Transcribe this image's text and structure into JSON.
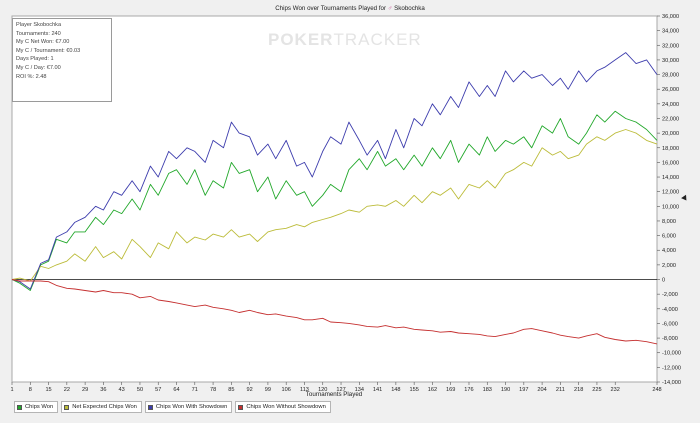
{
  "chart_data": {
    "type": "line",
    "title": "Chips Won over Tournaments Played for",
    "player_name": "Skobochka",
    "xlabel": "Tournaments Played",
    "ylabel": "",
    "xlim": [
      1,
      248
    ],
    "ylim": [
      -14000,
      36000
    ],
    "x_ticks": [
      "1",
      "8",
      "15",
      "22",
      "29",
      "36",
      "43",
      "50",
      "57",
      "64",
      "71",
      "78",
      "85",
      "92",
      "99",
      "106",
      "113",
      "120",
      "127",
      "134",
      "141",
      "148",
      "155",
      "162",
      "169",
      "176",
      "183",
      "190",
      "197",
      "204",
      "211",
      "218",
      "225",
      "232",
      "248"
    ],
    "y_ticks": [
      "36,000",
      "34,000",
      "32,000",
      "30,000",
      "28,000",
      "26,000",
      "24,000",
      "22,000",
      "20,000",
      "18,000",
      "16,000",
      "14,000",
      "12,000",
      "10,000",
      "8,000",
      "6,000",
      "4,000",
      "2,000",
      "0",
      "-2,000",
      "-4,000",
      "-6,000",
      "-8,000",
      "-10,000",
      "-12,000",
      "-14,000"
    ],
    "x": [
      1,
      4,
      8,
      12,
      15,
      18,
      22,
      25,
      29,
      33,
      36,
      40,
      43,
      47,
      50,
      54,
      57,
      61,
      64,
      68,
      71,
      75,
      78,
      82,
      85,
      88,
      92,
      95,
      99,
      102,
      106,
      110,
      113,
      116,
      120,
      123,
      127,
      130,
      134,
      137,
      141,
      144,
      148,
      151,
      155,
      158,
      162,
      165,
      169,
      172,
      176,
      180,
      183,
      186,
      190,
      193,
      197,
      200,
      204,
      208,
      211,
      214,
      218,
      221,
      225,
      228,
      232,
      236,
      240,
      244,
      248
    ],
    "series": [
      {
        "name": "Chips Won",
        "color": "#22a82b",
        "values": [
          0,
          -500,
          -1500,
          2000,
          2500,
          5500,
          5000,
          6500,
          6500,
          8500,
          7500,
          9500,
          9000,
          11000,
          9500,
          13000,
          11500,
          14500,
          15000,
          13000,
          15000,
          11500,
          13500,
          12500,
          16000,
          14500,
          15000,
          12000,
          14000,
          11000,
          13500,
          11500,
          12000,
          10000,
          11500,
          13000,
          12000,
          15000,
          16500,
          15000,
          17500,
          15500,
          16500,
          15000,
          17000,
          15500,
          18000,
          16500,
          19000,
          16000,
          18500,
          17000,
          19500,
          17500,
          19000,
          18500,
          19500,
          18000,
          21000,
          20000,
          22000,
          19500,
          18500,
          20000,
          22500,
          21500,
          23000,
          22000,
          21500,
          20500,
          19000
        ]
      },
      {
        "name": "Net Expected Chips Won",
        "color": "#bcbc3a",
        "values": [
          0,
          200,
          -200,
          1800,
          1500,
          2000,
          2500,
          3500,
          2500,
          4500,
          3000,
          3800,
          2800,
          5500,
          4500,
          3000,
          5000,
          4200,
          6500,
          5000,
          5800,
          5400,
          6200,
          5800,
          6800,
          5800,
          6200,
          5200,
          6500,
          6800,
          7000,
          7500,
          7200,
          7800,
          8200,
          8500,
          9000,
          9500,
          9200,
          10000,
          10200,
          10000,
          10800,
          10000,
          11500,
          10500,
          12000,
          11500,
          12500,
          11000,
          13000,
          12500,
          13500,
          12500,
          14500,
          15000,
          16000,
          15500,
          18000,
          17000,
          17500,
          16500,
          17000,
          18500,
          19500,
          19000,
          20000,
          20500,
          20000,
          19000,
          18500
        ]
      },
      {
        "name": "Chips Won With Showdown",
        "color": "#3d3dad",
        "values": [
          0,
          -300,
          -1300,
          2200,
          2700,
          5800,
          6500,
          7800,
          8500,
          10000,
          9500,
          12000,
          11500,
          13500,
          12000,
          15500,
          14000,
          17500,
          16500,
          18000,
          17500,
          16000,
          19000,
          18000,
          21500,
          20000,
          19500,
          17000,
          18500,
          16500,
          19000,
          15500,
          16000,
          14000,
          17500,
          19500,
          18500,
          21500,
          19000,
          17000,
          19000,
          16500,
          20500,
          18000,
          22000,
          21000,
          24000,
          22500,
          25000,
          23500,
          27000,
          25000,
          26500,
          25000,
          28500,
          27000,
          28500,
          27500,
          28000,
          26500,
          27500,
          26000,
          28500,
          27000,
          28500,
          29000,
          30000,
          31000,
          29500,
          30000,
          28000
        ]
      },
      {
        "name": "Chips Won Without Showdown",
        "color": "#c53030",
        "values": [
          0,
          -200,
          -200,
          -200,
          -300,
          -800,
          -1200,
          -1300,
          -1500,
          -1700,
          -1500,
          -1800,
          -1800,
          -2000,
          -2500,
          -2300,
          -2800,
          -3000,
          -3200,
          -3500,
          -3700,
          -3500,
          -3800,
          -4000,
          -4200,
          -4500,
          -4200,
          -4500,
          -4800,
          -4700,
          -5000,
          -5200,
          -5500,
          -5500,
          -5300,
          -5800,
          -5900,
          -6000,
          -6200,
          -6400,
          -6500,
          -6300,
          -6600,
          -6500,
          -6800,
          -6900,
          -7000,
          -7200,
          -7100,
          -7300,
          -7400,
          -7500,
          -7700,
          -7800,
          -7500,
          -7300,
          -6800,
          -6700,
          -7000,
          -7300,
          -7600,
          -7800,
          -8000,
          -7700,
          -7400,
          -7900,
          -8200,
          -8400,
          -8300,
          -8500,
          -8800
        ]
      }
    ]
  },
  "stats_box": {
    "player": "Player Skobochka",
    "tournaments": "Tournaments: 240",
    "net_won": "My C Net Won: €7.00",
    "per_tournament": "My C / Tournament: €0.03",
    "days_played": "Days Played: 1",
    "per_day": "My C / Day: €7.00",
    "roi": "ROI %: 2.48"
  },
  "watermark": {
    "bold": "POKER",
    "thin": "TRACKER"
  },
  "legend": [
    {
      "label": "Chips Won",
      "color": "#22a82b"
    },
    {
      "label": "Net Expected Chips Won",
      "color": "#bcbc3a"
    },
    {
      "label": "Chips Won With Showdown",
      "color": "#3d3dad"
    },
    {
      "label": "Chips Won Without Showdown",
      "color": "#c53030"
    }
  ]
}
